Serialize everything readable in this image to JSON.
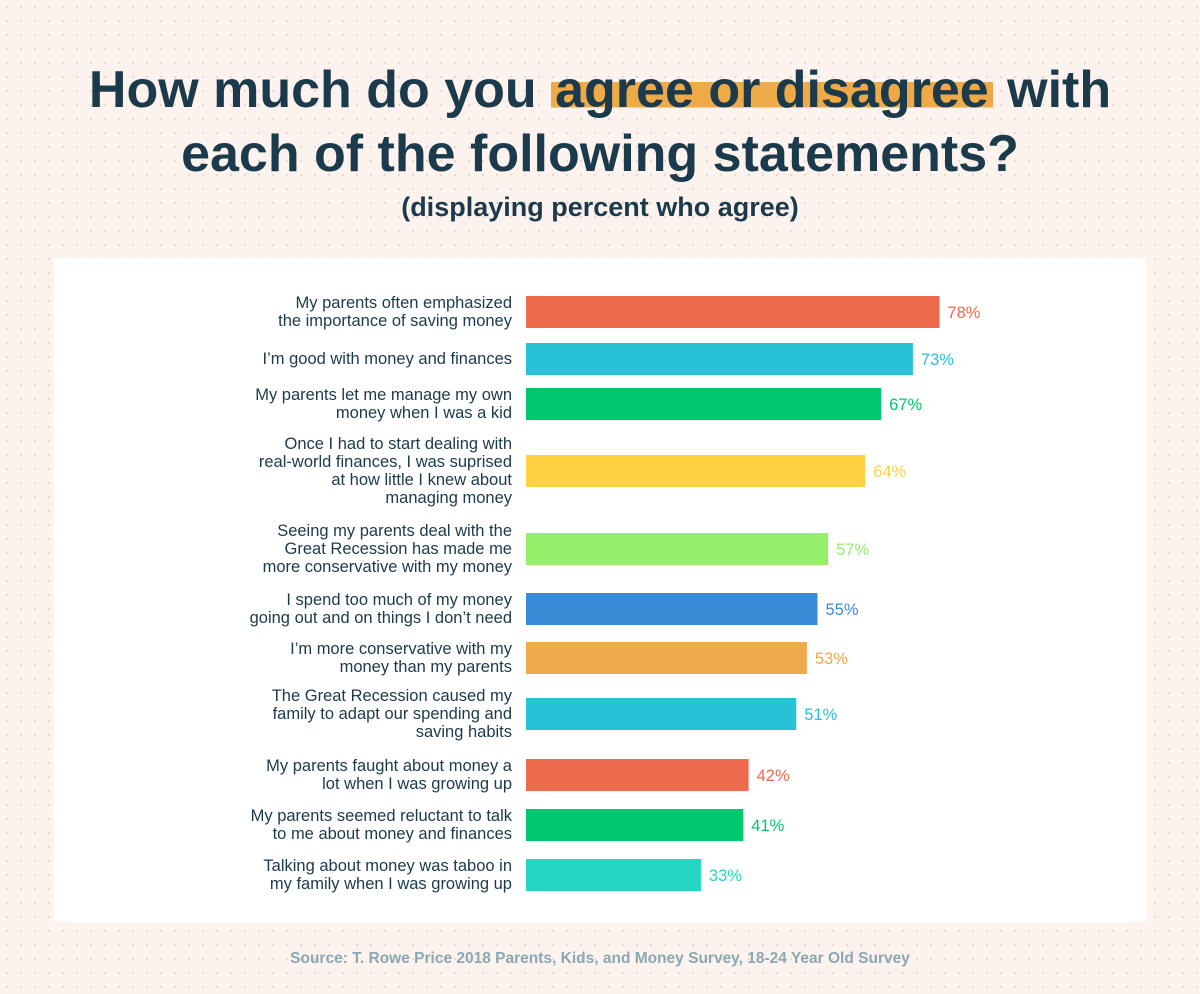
{
  "title": {
    "before": "How much do you ",
    "highlight": "agree or disagree",
    "after_line1": " with",
    "line2": "each of the following statements?"
  },
  "subtitle": "(displaying percent who agree)",
  "source": "Source: T. Rowe Price 2018 Parents, Kids, and Money Survey, 18-24 Year Old Survey",
  "chart_data": {
    "type": "bar",
    "orientation": "horizontal",
    "title": "How much do you agree or disagree with each of the following statements?",
    "subtitle": "(displaying percent who agree)",
    "xlim": [
      0,
      100
    ],
    "grid": false,
    "unit": "%",
    "categories": [
      [
        "My parents often emphasized",
        "the importance of saving money"
      ],
      [
        "I’m good with money and finances"
      ],
      [
        "My parents let me manage my own",
        "money when I was a kid"
      ],
      [
        "Once I had to start dealing with",
        "real-world finances, I was suprised",
        "at how little I knew about",
        "managing money"
      ],
      [
        "Seeing my parents deal with the",
        "Great Recession has made me",
        "more conservative with my money"
      ],
      [
        "I spend too much of my money",
        "going out and on things I don’t need"
      ],
      [
        "I’m more conservative with my",
        "money than my parents"
      ],
      [
        "The Great Recession caused my",
        "family to adapt our spending and",
        "saving habits"
      ],
      [
        "My parents faught about money a",
        "lot when I was growing up"
      ],
      [
        "My parents seemed reluctant to talk",
        "to me about money and finances"
      ],
      [
        "Talking about money was taboo in",
        "my family when I was growing up"
      ]
    ],
    "values": [
      78,
      73,
      67,
      64,
      57,
      55,
      53,
      51,
      42,
      41,
      33
    ],
    "value_labels": [
      "78%",
      "73%",
      "67%",
      "64%",
      "57%",
      "55%",
      "53%",
      "51%",
      "42%",
      "41%",
      "33%"
    ],
    "colors": [
      "#ee6a4d",
      "#28c2d6",
      "#00c86e",
      "#ffd03f",
      "#96ee6a",
      "#3a8bd6",
      "#eeaa4d",
      "#28c2d6",
      "#ee6a4d",
      "#00c86e",
      "#25d6c2"
    ]
  }
}
